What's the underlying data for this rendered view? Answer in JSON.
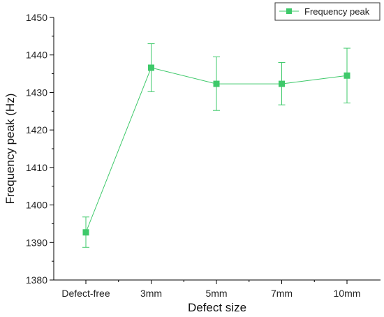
{
  "chart_data": {
    "type": "line",
    "xlabel": "Defect size",
    "ylabel": "Frequency peak (Hz)",
    "categories": [
      "Defect-free",
      "3mm",
      "5mm",
      "7mm",
      "10mm"
    ],
    "ylim": [
      1380,
      1450
    ],
    "yticks": [
      1380,
      1390,
      1400,
      1410,
      1420,
      1430,
      1440,
      1450
    ],
    "grid": false,
    "legend_position": "top-right",
    "series": [
      {
        "name": "Frequency peak",
        "color": "#3ec96a",
        "marker": "square",
        "values": [
          1392.7,
          1436.6,
          1432.3,
          1432.3,
          1434.5
        ],
        "error_upper": [
          1396.8,
          1443.0,
          1439.5,
          1438.0,
          1441.8
        ],
        "error_lower": [
          1388.7,
          1430.2,
          1425.2,
          1426.7,
          1427.2
        ]
      }
    ]
  }
}
